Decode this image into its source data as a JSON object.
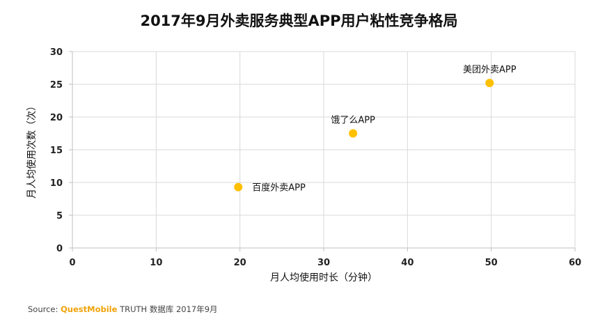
{
  "source": {
    "label": "Source:",
    "brand": "QuestMobile",
    "text": "TRUTH 数据库 2017年9月"
  },
  "chart_data": {
    "type": "scatter",
    "title": "2017年9月外卖服务典型APP用户粘性竞争格局",
    "xlabel": "月人均使用时长（分钟）",
    "ylabel": "月人均使用次数（次）",
    "xlim": [
      0,
      60
    ],
    "ylim": [
      0,
      30
    ],
    "xticks": [
      0,
      10,
      20,
      30,
      40,
      50,
      60
    ],
    "yticks": [
      0,
      5,
      10,
      15,
      20,
      25,
      30
    ],
    "grid": true,
    "marker_color": "#ffc000",
    "points": [
      {
        "label": "百度外卖APP",
        "x": 19.8,
        "y": 9.3,
        "label_pos": "right"
      },
      {
        "label": "饿了么APP",
        "x": 33.5,
        "y": 17.5,
        "label_pos": "above"
      },
      {
        "label": "美团外卖APP",
        "x": 49.8,
        "y": 25.2,
        "label_pos": "above"
      }
    ]
  }
}
